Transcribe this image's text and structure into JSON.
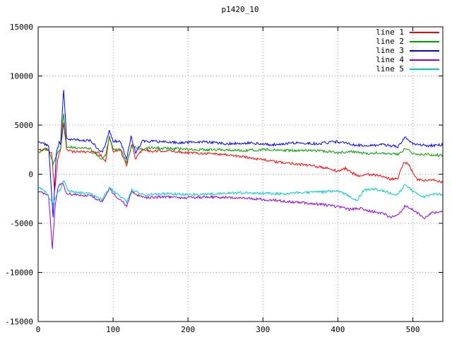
{
  "window": {
    "title": "p1420_10"
  },
  "chart_data": {
    "type": "line",
    "title": "p1420_10",
    "xlabel": "",
    "ylabel": "",
    "xlim": [
      0,
      540
    ],
    "ylim": [
      -15000,
      15000
    ],
    "xticks": [
      0,
      100,
      200,
      300,
      400,
      500
    ],
    "yticks": [
      -15000,
      -10000,
      -5000,
      0,
      5000,
      10000,
      15000
    ],
    "grid": true,
    "grid_style": "dotted",
    "legend_position": "top-right-inside",
    "noise_amplitude": 130,
    "series": [
      {
        "name": "line 1",
        "color": "#ff0000",
        "keypoints": [
          [
            0,
            2400
          ],
          [
            10,
            2600
          ],
          [
            18,
            2200
          ],
          [
            22,
            -1800
          ],
          [
            26,
            1500
          ],
          [
            30,
            2500
          ],
          [
            34,
            5200
          ],
          [
            38,
            2600
          ],
          [
            45,
            2300
          ],
          [
            60,
            2300
          ],
          [
            80,
            2200
          ],
          [
            90,
            1400
          ],
          [
            95,
            3800
          ],
          [
            100,
            2300
          ],
          [
            110,
            2400
          ],
          [
            118,
            900
          ],
          [
            125,
            3000
          ],
          [
            130,
            1600
          ],
          [
            140,
            2600
          ],
          [
            150,
            2300
          ],
          [
            170,
            2400
          ],
          [
            200,
            2200
          ],
          [
            230,
            2100
          ],
          [
            250,
            2000
          ],
          [
            280,
            1700
          ],
          [
            300,
            1500
          ],
          [
            320,
            1200
          ],
          [
            340,
            1100
          ],
          [
            360,
            900
          ],
          [
            380,
            700
          ],
          [
            400,
            300
          ],
          [
            410,
            600
          ],
          [
            420,
            100
          ],
          [
            430,
            -200
          ],
          [
            440,
            0
          ],
          [
            450,
            -100
          ],
          [
            460,
            -300
          ],
          [
            470,
            -500
          ],
          [
            480,
            -400
          ],
          [
            488,
            1300
          ],
          [
            495,
            900
          ],
          [
            505,
            -500
          ],
          [
            515,
            -700
          ],
          [
            525,
            -600
          ],
          [
            540,
            -800
          ]
        ]
      },
      {
        "name": "line 2",
        "color": "#00a000",
        "keypoints": [
          [
            0,
            2200
          ],
          [
            8,
            2500
          ],
          [
            15,
            2400
          ],
          [
            20,
            1000
          ],
          [
            25,
            2000
          ],
          [
            30,
            2600
          ],
          [
            34,
            6300
          ],
          [
            38,
            2800
          ],
          [
            50,
            2700
          ],
          [
            70,
            2600
          ],
          [
            85,
            1500
          ],
          [
            90,
            2000
          ],
          [
            95,
            3900
          ],
          [
            100,
            2600
          ],
          [
            110,
            2500
          ],
          [
            118,
            1200
          ],
          [
            125,
            2900
          ],
          [
            135,
            2500
          ],
          [
            150,
            2700
          ],
          [
            180,
            2600
          ],
          [
            210,
            2500
          ],
          [
            240,
            2500
          ],
          [
            270,
            2400
          ],
          [
            300,
            2500
          ],
          [
            330,
            2400
          ],
          [
            360,
            2400
          ],
          [
            390,
            2300
          ],
          [
            400,
            2200
          ],
          [
            420,
            2300
          ],
          [
            440,
            2100
          ],
          [
            460,
            2200
          ],
          [
            480,
            2000
          ],
          [
            490,
            2600
          ],
          [
            500,
            2100
          ],
          [
            520,
            2000
          ],
          [
            540,
            1900
          ]
        ]
      },
      {
        "name": "line 3",
        "color": "#0000ff",
        "keypoints": [
          [
            0,
            3300
          ],
          [
            8,
            3100
          ],
          [
            14,
            2800
          ],
          [
            20,
            -4500
          ],
          [
            24,
            2000
          ],
          [
            28,
            3200
          ],
          [
            30,
            3000
          ],
          [
            34,
            8700
          ],
          [
            38,
            3600
          ],
          [
            50,
            3500
          ],
          [
            70,
            3400
          ],
          [
            85,
            2200
          ],
          [
            90,
            3000
          ],
          [
            95,
            4400
          ],
          [
            100,
            3400
          ],
          [
            110,
            3300
          ],
          [
            118,
            1500
          ],
          [
            124,
            3800
          ],
          [
            130,
            2200
          ],
          [
            140,
            3400
          ],
          [
            160,
            3300
          ],
          [
            190,
            3200
          ],
          [
            220,
            3300
          ],
          [
            250,
            3100
          ],
          [
            280,
            3200
          ],
          [
            310,
            3000
          ],
          [
            340,
            3200
          ],
          [
            370,
            3100
          ],
          [
            400,
            3300
          ],
          [
            420,
            3000
          ],
          [
            440,
            2900
          ],
          [
            460,
            3000
          ],
          [
            480,
            2800
          ],
          [
            490,
            3800
          ],
          [
            500,
            3100
          ],
          [
            520,
            2900
          ],
          [
            540,
            3000
          ]
        ]
      },
      {
        "name": "line 4",
        "color": "#9400d3",
        "keypoints": [
          [
            0,
            -1800
          ],
          [
            8,
            -2000
          ],
          [
            14,
            -2200
          ],
          [
            19,
            -7600
          ],
          [
            23,
            -3000
          ],
          [
            27,
            -1200
          ],
          [
            33,
            -900
          ],
          [
            38,
            -2000
          ],
          [
            50,
            -2100
          ],
          [
            70,
            -2200
          ],
          [
            85,
            -2800
          ],
          [
            95,
            -1500
          ],
          [
            105,
            -2300
          ],
          [
            118,
            -3200
          ],
          [
            125,
            -1800
          ],
          [
            140,
            -2400
          ],
          [
            170,
            -2300
          ],
          [
            200,
            -2400
          ],
          [
            230,
            -2300
          ],
          [
            260,
            -2400
          ],
          [
            290,
            -2500
          ],
          [
            320,
            -2700
          ],
          [
            350,
            -2900
          ],
          [
            380,
            -3100
          ],
          [
            400,
            -3300
          ],
          [
            415,
            -3600
          ],
          [
            430,
            -3500
          ],
          [
            445,
            -3800
          ],
          [
            460,
            -4000
          ],
          [
            470,
            -4400
          ],
          [
            480,
            -4200
          ],
          [
            490,
            -3200
          ],
          [
            500,
            -3600
          ],
          [
            515,
            -4500
          ],
          [
            525,
            -3900
          ],
          [
            540,
            -3800
          ]
        ]
      },
      {
        "name": "line 5",
        "color": "#00cccc",
        "keypoints": [
          [
            0,
            -1400
          ],
          [
            10,
            -1800
          ],
          [
            16,
            -2600
          ],
          [
            20,
            -3000
          ],
          [
            25,
            -2000
          ],
          [
            30,
            -1500
          ],
          [
            34,
            -600
          ],
          [
            40,
            -1700
          ],
          [
            55,
            -1900
          ],
          [
            70,
            -2000
          ],
          [
            85,
            -2600
          ],
          [
            95,
            -1400
          ],
          [
            105,
            -2000
          ],
          [
            118,
            -2800
          ],
          [
            125,
            -1600
          ],
          [
            140,
            -2100
          ],
          [
            170,
            -2000
          ],
          [
            200,
            -2100
          ],
          [
            230,
            -2000
          ],
          [
            260,
            -1900
          ],
          [
            290,
            -1900
          ],
          [
            320,
            -2000
          ],
          [
            350,
            -1900
          ],
          [
            380,
            -1800
          ],
          [
            400,
            -1700
          ],
          [
            415,
            -2200
          ],
          [
            425,
            -2700
          ],
          [
            435,
            -1600
          ],
          [
            450,
            -1500
          ],
          [
            465,
            -1800
          ],
          [
            480,
            -2100
          ],
          [
            490,
            -1000
          ],
          [
            500,
            -1800
          ],
          [
            515,
            -2300
          ],
          [
            530,
            -2000
          ],
          [
            540,
            -2100
          ]
        ]
      }
    ]
  }
}
